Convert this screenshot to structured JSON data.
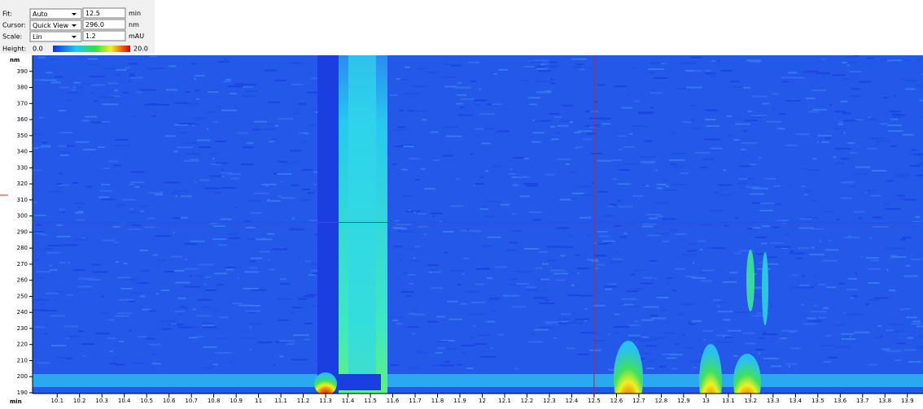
{
  "toolbar": {
    "fit": {
      "label": "Fit:",
      "mode": "Auto",
      "value": 12.5,
      "unit": "min"
    },
    "cursor": {
      "label": "Cursor:",
      "mode": "Quick View",
      "value": "296.0",
      "unit": "nm"
    },
    "scale": {
      "label": "Scale:",
      "mode": "Lin",
      "value": "1.2",
      "unit": "mAU"
    },
    "height": {
      "label": "Height:",
      "min": "0.0",
      "max": "20.0"
    }
  },
  "chart_data": {
    "type": "heatmap",
    "x_label": "min",
    "y_label": "nm",
    "xlim": [
      9.99,
      13.97
    ],
    "ylim": [
      189.5,
      400
    ],
    "xticks": [
      10.1,
      10.2,
      10.3,
      10.4,
      10.5,
      10.6,
      10.7,
      10.8,
      10.9,
      11,
      11.1,
      11.2,
      11.3,
      11.4,
      11.5,
      11.6,
      11.7,
      11.8,
      11.9,
      12,
      12.1,
      12.2,
      12.3,
      12.4,
      12.5,
      12.6,
      12.7,
      12.8,
      12.9,
      13,
      13.1,
      13.2,
      13.3,
      13.4,
      13.5,
      13.6,
      13.7,
      13.8,
      13.9
    ],
    "yticks": [
      190,
      200,
      210,
      220,
      230,
      240,
      250,
      260,
      270,
      280,
      290,
      300,
      310,
      320,
      330,
      340,
      350,
      360,
      370,
      380,
      390
    ],
    "cursor": {
      "x": 12.5,
      "y": 296
    }
  }
}
